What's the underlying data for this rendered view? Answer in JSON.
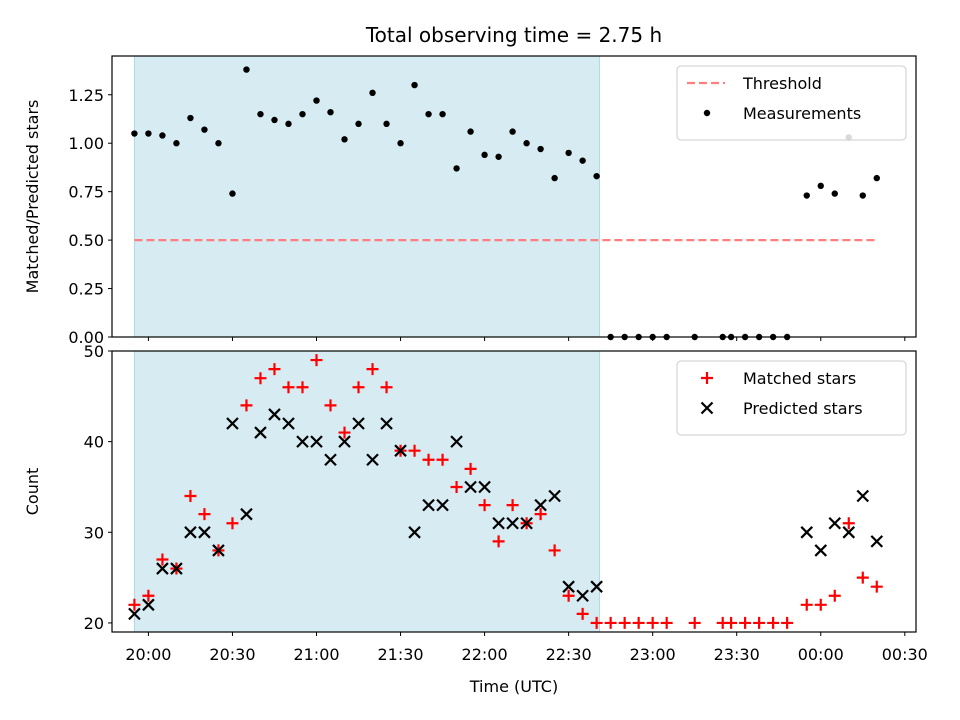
{
  "chart_data": [
    {
      "type": "scatter",
      "title": "Total observing time = 2.75 h",
      "ylabel": "Matched/Predicted stars",
      "xlabel": "",
      "xlim": [
        "19:47",
        "00:34"
      ],
      "ylim": [
        0,
        1.45
      ],
      "yticks": [
        0.0,
        0.25,
        0.5,
        0.75,
        1.0,
        1.25
      ],
      "ytick_labels": [
        "0.00",
        "0.25",
        "0.50",
        "0.75",
        "1.00",
        "1.25"
      ],
      "grid": false,
      "legend": "top-right",
      "shaded_interval": [
        "19:55",
        "22:41"
      ],
      "series": [
        {
          "name": "Threshold",
          "kind": "dashed-line",
          "color": "#ff7f7f",
          "points": [
            [
              "19:55",
              0.5
            ],
            [
              "00:20",
              0.5
            ]
          ]
        },
        {
          "name": "Measurements",
          "kind": "dot",
          "color": "#000000",
          "points": [
            [
              "19:55",
              1.05
            ],
            [
              "20:00",
              1.05
            ],
            [
              "20:05",
              1.04
            ],
            [
              "20:10",
              1.0
            ],
            [
              "20:15",
              1.13
            ],
            [
              "20:20",
              1.07
            ],
            [
              "20:25",
              1.0
            ],
            [
              "20:30",
              0.74
            ],
            [
              "20:35",
              1.38
            ],
            [
              "20:40",
              1.15
            ],
            [
              "20:45",
              1.12
            ],
            [
              "20:50",
              1.1
            ],
            [
              "20:55",
              1.15
            ],
            [
              "21:00",
              1.22
            ],
            [
              "21:05",
              1.16
            ],
            [
              "21:10",
              1.02
            ],
            [
              "21:15",
              1.1
            ],
            [
              "21:20",
              1.26
            ],
            [
              "21:25",
              1.1
            ],
            [
              "21:30",
              1.0
            ],
            [
              "21:35",
              1.3
            ],
            [
              "21:40",
              1.15
            ],
            [
              "21:45",
              1.15
            ],
            [
              "21:50",
              0.87
            ],
            [
              "21:55",
              1.06
            ],
            [
              "22:00",
              0.94
            ],
            [
              "22:05",
              0.93
            ],
            [
              "22:10",
              1.06
            ],
            [
              "22:15",
              1.0
            ],
            [
              "22:20",
              0.97
            ],
            [
              "22:25",
              0.82
            ],
            [
              "22:30",
              0.95
            ],
            [
              "22:35",
              0.91
            ],
            [
              "22:40",
              0.83
            ],
            [
              "22:45",
              0.0
            ],
            [
              "22:50",
              0.0
            ],
            [
              "22:55",
              0.0
            ],
            [
              "23:00",
              0.0
            ],
            [
              "23:05",
              0.0
            ],
            [
              "23:15",
              0.0
            ],
            [
              "23:25",
              0.0
            ],
            [
              "23:28",
              0.0
            ],
            [
              "23:33",
              0.0
            ],
            [
              "23:38",
              0.0
            ],
            [
              "23:43",
              0.0
            ],
            [
              "23:48",
              0.0
            ],
            [
              "23:55",
              0.73
            ],
            [
              "00:00",
              0.78
            ],
            [
              "00:05",
              0.74
            ],
            [
              "00:10",
              1.03
            ],
            [
              "00:15",
              0.73
            ],
            [
              "00:20",
              0.82
            ]
          ]
        }
      ]
    },
    {
      "type": "scatter",
      "title": "",
      "ylabel": "Count",
      "xlabel": "Time (UTC)",
      "xlim": [
        "19:47",
        "00:34"
      ],
      "ylim": [
        19,
        50
      ],
      "yticks": [
        20,
        30,
        40,
        50
      ],
      "ytick_labels": [
        "20",
        "30",
        "40",
        "50"
      ],
      "xticks": [
        "20:00",
        "20:30",
        "21:00",
        "21:30",
        "22:00",
        "22:30",
        "23:00",
        "23:30",
        "00:00",
        "00:30"
      ],
      "grid": false,
      "legend": "top-right",
      "shaded_interval": [
        "19:55",
        "22:41"
      ],
      "series": [
        {
          "name": "Matched stars",
          "kind": "plus",
          "color": "#ff0000",
          "points": [
            [
              "19:55",
              22
            ],
            [
              "20:00",
              23
            ],
            [
              "20:05",
              27
            ],
            [
              "20:10",
              26
            ],
            [
              "20:15",
              34
            ],
            [
              "20:20",
              32
            ],
            [
              "20:25",
              28
            ],
            [
              "20:30",
              31
            ],
            [
              "20:35",
              44
            ],
            [
              "20:40",
              47
            ],
            [
              "20:45",
              48
            ],
            [
              "20:50",
              46
            ],
            [
              "20:55",
              46
            ],
            [
              "21:00",
              49
            ],
            [
              "21:05",
              44
            ],
            [
              "21:10",
              41
            ],
            [
              "21:15",
              46
            ],
            [
              "21:20",
              48
            ],
            [
              "21:25",
              46
            ],
            [
              "21:30",
              39
            ],
            [
              "21:35",
              39
            ],
            [
              "21:40",
              38
            ],
            [
              "21:45",
              38
            ],
            [
              "21:50",
              35
            ],
            [
              "21:55",
              37
            ],
            [
              "22:00",
              33
            ],
            [
              "22:05",
              29
            ],
            [
              "22:10",
              33
            ],
            [
              "22:15",
              31
            ],
            [
              "22:20",
              32
            ],
            [
              "22:25",
              28
            ],
            [
              "22:30",
              23
            ],
            [
              "22:35",
              21
            ],
            [
              "22:40",
              20
            ],
            [
              "22:45",
              20
            ],
            [
              "22:50",
              20
            ],
            [
              "22:55",
              20
            ],
            [
              "23:00",
              20
            ],
            [
              "23:05",
              20
            ],
            [
              "23:15",
              20
            ],
            [
              "23:25",
              20
            ],
            [
              "23:28",
              20
            ],
            [
              "23:33",
              20
            ],
            [
              "23:38",
              20
            ],
            [
              "23:43",
              20
            ],
            [
              "23:48",
              20
            ],
            [
              "23:55",
              22
            ],
            [
              "00:00",
              22
            ],
            [
              "00:05",
              23
            ],
            [
              "00:10",
              31
            ],
            [
              "00:15",
              25
            ],
            [
              "00:20",
              24
            ]
          ]
        },
        {
          "name": "Predicted stars",
          "kind": "x",
          "color": "#000000",
          "points": [
            [
              "19:55",
              21
            ],
            [
              "20:00",
              22
            ],
            [
              "20:05",
              26
            ],
            [
              "20:10",
              26
            ],
            [
              "20:15",
              30
            ],
            [
              "20:20",
              30
            ],
            [
              "20:25",
              28
            ],
            [
              "20:30",
              42
            ],
            [
              "20:35",
              32
            ],
            [
              "20:40",
              41
            ],
            [
              "20:45",
              43
            ],
            [
              "20:50",
              42
            ],
            [
              "20:55",
              40
            ],
            [
              "21:00",
              40
            ],
            [
              "21:05",
              38
            ],
            [
              "21:10",
              40
            ],
            [
              "21:15",
              42
            ],
            [
              "21:20",
              38
            ],
            [
              "21:25",
              42
            ],
            [
              "21:30",
              39
            ],
            [
              "21:35",
              30
            ],
            [
              "21:40",
              33
            ],
            [
              "21:45",
              33
            ],
            [
              "21:50",
              40
            ],
            [
              "21:55",
              35
            ],
            [
              "22:00",
              35
            ],
            [
              "22:05",
              31
            ],
            [
              "22:10",
              31
            ],
            [
              "22:15",
              31
            ],
            [
              "22:20",
              33
            ],
            [
              "22:25",
              34
            ],
            [
              "22:30",
              24
            ],
            [
              "22:35",
              23
            ],
            [
              "22:40",
              24
            ],
            [
              "23:55",
              30
            ],
            [
              "00:00",
              28
            ],
            [
              "00:05",
              31
            ],
            [
              "00:10",
              30
            ],
            [
              "00:15",
              34
            ],
            [
              "00:20",
              29
            ]
          ]
        }
      ]
    }
  ]
}
